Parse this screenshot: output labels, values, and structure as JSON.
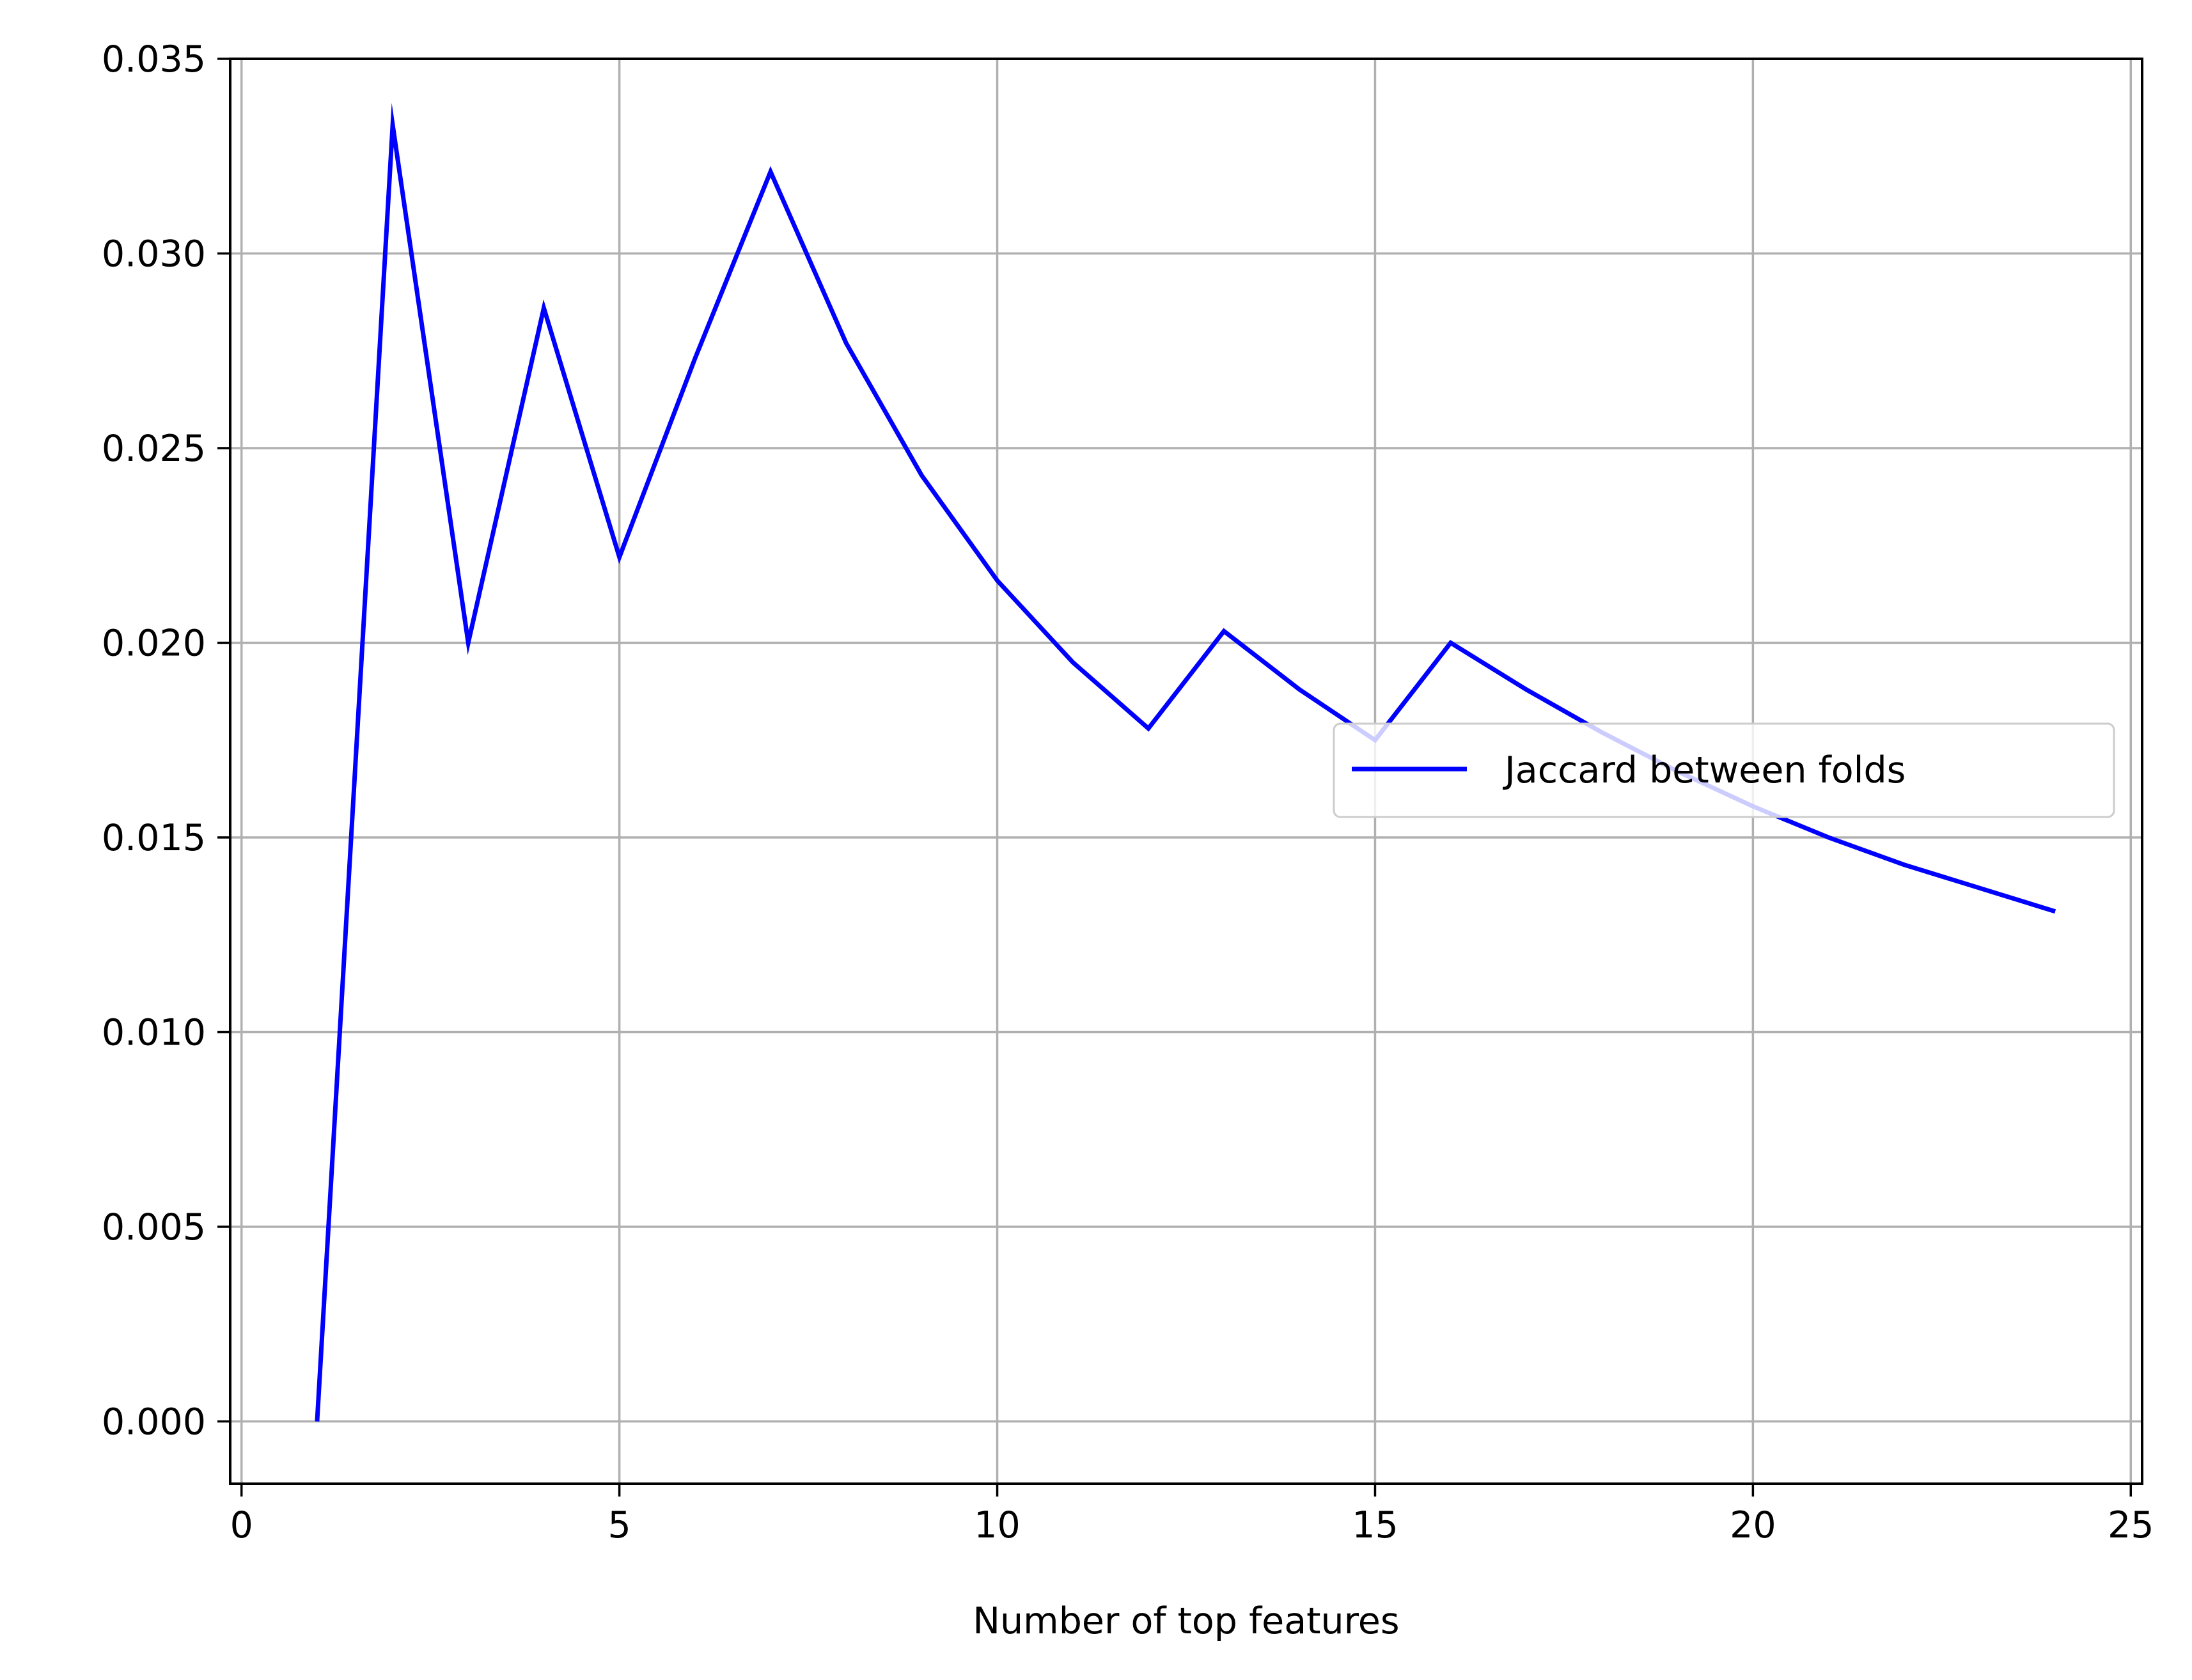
{
  "chart_data": {
    "type": "line",
    "xlabel": "Number of top features",
    "ylabel": "",
    "title": "",
    "xlim": [
      -0.15,
      25.15
    ],
    "ylim": [
      -0.0016,
      0.035
    ],
    "xticks": [
      0,
      5,
      10,
      15,
      20,
      25
    ],
    "xtick_labels": [
      "0",
      "5",
      "10",
      "15",
      "20",
      "25"
    ],
    "yticks": [
      0.0,
      0.005,
      0.01,
      0.015,
      0.02,
      0.025,
      0.03,
      0.035
    ],
    "ytick_labels": [
      "0.000",
      "0.005",
      "0.010",
      "0.015",
      "0.020",
      "0.025",
      "0.030",
      "0.035"
    ],
    "grid": true,
    "legend_position": "center-right",
    "series": [
      {
        "name": "Jaccard between folds",
        "color": "#0000ff",
        "x": [
          1,
          2,
          3,
          4,
          5,
          6,
          7,
          8,
          9,
          10,
          11,
          12,
          13,
          14,
          15,
          16,
          17,
          18,
          19,
          20,
          21,
          22,
          23,
          24
        ],
        "y": [
          0.0,
          0.0333,
          0.02,
          0.0286,
          0.0222,
          0.0273,
          0.0321,
          0.0277,
          0.0243,
          0.0216,
          0.0195,
          0.0178,
          0.0203,
          0.0188,
          0.0175,
          0.02,
          0.0188,
          0.0177,
          0.0167,
          0.0158,
          0.015,
          0.0143,
          0.0137,
          0.0131
        ]
      }
    ]
  }
}
